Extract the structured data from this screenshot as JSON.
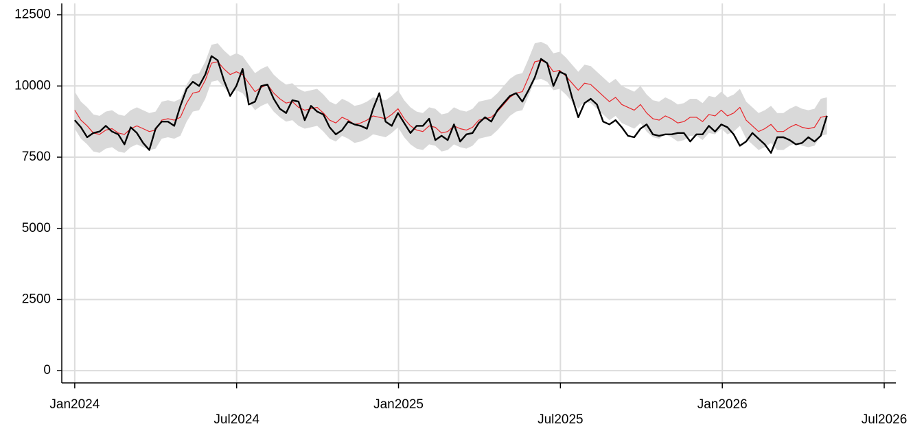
{
  "chart_data": {
    "type": "line",
    "x": [
      2024,
      2024.0192,
      2024.0384,
      2024.0576,
      2024.0768,
      2024.096,
      2024.1152,
      2024.1344,
      2024.1536,
      2024.1728,
      2024.192,
      2024.2112,
      2024.2304,
      2024.2496,
      2024.2688,
      2024.288,
      2024.3072,
      2024.3264,
      2024.3456,
      2024.3648,
      2024.384,
      2024.4032,
      2024.4224,
      2024.4416,
      2024.4608,
      2024.48,
      2024.4992,
      2024.5184,
      2024.5376,
      2024.5568,
      2024.576,
      2024.5952,
      2024.6144,
      2024.6336,
      2024.6528,
      2024.672,
      2024.6912,
      2024.7104,
      2024.7296,
      2024.7488,
      2024.768,
      2024.7872,
      2024.8064,
      2024.8256,
      2024.8448,
      2024.864,
      2024.8832,
      2024.9024,
      2024.9216,
      2024.9408,
      2024.96,
      2024.9792,
      2024.9984,
      2025.0176,
      2025.0368,
      2025.056,
      2025.0752,
      2025.0944,
      2025.1136,
      2025.1328,
      2025.152,
      2025.1712,
      2025.1904,
      2025.2096,
      2025.2288,
      2025.248,
      2025.2672,
      2025.2864,
      2025.3056,
      2025.3248,
      2025.344,
      2025.3632,
      2025.3824,
      2025.4016,
      2025.4208,
      2025.44,
      2025.4592,
      2025.4784,
      2025.4976,
      2025.5168,
      2025.536,
      2025.5552,
      2025.5744,
      2025.5936,
      2025.6128,
      2025.632,
      2025.6512,
      2025.6704,
      2025.6896,
      2025.7088,
      2025.728,
      2025.7472,
      2025.7664,
      2025.7856,
      2025.8048,
      2025.824,
      2025.8432,
      2025.8624,
      2025.8816,
      2025.9008,
      2025.92,
      2025.9392,
      2025.9584,
      2025.9776,
      2025.9968,
      2026.016,
      2026.0352,
      2026.0544,
      2026.0736,
      2026.0928,
      2026.112,
      2026.1312,
      2026.1504,
      2026.1696,
      2026.1888,
      2026.208,
      2026.2272,
      2026.2464,
      2026.2656,
      2026.2848,
      2026.304,
      2026.3232
    ],
    "band": {
      "color": "#d9d9d9",
      "lower": [
        8500,
        8150,
        7950,
        7700,
        7650,
        7800,
        7850,
        7700,
        7650,
        7850,
        7950,
        7850,
        7750,
        7800,
        8150,
        8200,
        8150,
        8250,
        8750,
        9100,
        9150,
        9550,
        10150,
        10200,
        9950,
        9750,
        9850,
        9750,
        9450,
        9150,
        9300,
        9400,
        9100,
        8900,
        8750,
        8800,
        8600,
        8500,
        8550,
        8600,
        8400,
        8150,
        8050,
        8250,
        8150,
        8000,
        8050,
        8150,
        8300,
        8250,
        8200,
        8350,
        8550,
        8200,
        7950,
        7800,
        7750,
        7950,
        7900,
        7700,
        7750,
        7950,
        7850,
        7800,
        7900,
        8150,
        8200,
        8250,
        8450,
        8700,
        8950,
        9100,
        9150,
        9650,
        10200,
        10250,
        10150,
        9850,
        9900,
        9700,
        9450,
        9200,
        9450,
        9400,
        9200,
        9000,
        8800,
        8950,
        8700,
        8600,
        8500,
        8700,
        8400,
        8200,
        8150,
        8300,
        8200,
        8050,
        8100,
        8250,
        8250,
        8100,
        8350,
        8300,
        8500,
        8300,
        8400,
        8600,
        8150,
        7950,
        7750,
        7850,
        8000,
        7750,
        7750,
        7900,
        8000,
        7900,
        7850,
        7900,
        8250,
        8300
      ],
      "upper": [
        9800,
        9450,
        9250,
        9000,
        8950,
        9100,
        9150,
        9000,
        8950,
        9150,
        9250,
        9150,
        9050,
        9100,
        9450,
        9500,
        9450,
        9550,
        10050,
        10400,
        10450,
        10850,
        11450,
        11500,
        11250,
        11050,
        11150,
        11050,
        10750,
        10450,
        10600,
        10700,
        10400,
        10200,
        10050,
        10100,
        9900,
        9800,
        9850,
        9900,
        9700,
        9450,
        9350,
        9550,
        9450,
        9300,
        9350,
        9450,
        9600,
        9550,
        9500,
        9650,
        9850,
        9500,
        9250,
        9100,
        9050,
        9250,
        9200,
        9000,
        9050,
        9250,
        9150,
        9100,
        9200,
        9450,
        9500,
        9550,
        9750,
        10000,
        10250,
        10400,
        10450,
        10950,
        11500,
        11550,
        11450,
        11150,
        11200,
        11000,
        10750,
        10500,
        10750,
        10700,
        10500,
        10300,
        10100,
        10250,
        10000,
        9900,
        9800,
        10000,
        9700,
        9500,
        9450,
        9600,
        9500,
        9350,
        9400,
        9550,
        9550,
        9400,
        9650,
        9600,
        9800,
        9600,
        9700,
        9900,
        9450,
        9250,
        9050,
        9150,
        9300,
        9050,
        9050,
        9200,
        9300,
        9200,
        9150,
        9200,
        9550,
        9600
      ]
    },
    "series": [
      {
        "color": "#e8262b",
        "values": [
          9150,
          8800,
          8600,
          8350,
          8300,
          8450,
          8500,
          8350,
          8300,
          8500,
          8600,
          8500,
          8400,
          8450,
          8800,
          8850,
          8800,
          8900,
          9400,
          9750,
          9800,
          10200,
          10800,
          10850,
          10600,
          10400,
          10500,
          10400,
          10100,
          9800,
          9950,
          10050,
          9750,
          9550,
          9400,
          9450,
          9250,
          9150,
          9200,
          9250,
          9050,
          8800,
          8700,
          8900,
          8800,
          8650,
          8700,
          8800,
          8950,
          8900,
          8850,
          9000,
          9200,
          8850,
          8600,
          8450,
          8400,
          8600,
          8550,
          8350,
          8400,
          8600,
          8500,
          8450,
          8550,
          8800,
          8850,
          8900,
          9100,
          9350,
          9600,
          9750,
          9800,
          10300,
          10850,
          10900,
          10800,
          10500,
          10550,
          10350,
          10100,
          9850,
          10100,
          10050,
          9850,
          9650,
          9450,
          9600,
          9350,
          9250,
          9150,
          9350,
          9050,
          8850,
          8800,
          8950,
          8850,
          8700,
          8750,
          8900,
          8900,
          8750,
          9000,
          8950,
          9150,
          8950,
          9050,
          9250,
          8800,
          8600,
          8400,
          8500,
          8650,
          8400,
          8400,
          8550,
          8650,
          8550,
          8500,
          8550,
          8900,
          8950
        ]
      },
      {
        "color": "#000000",
        "values": [
          8800,
          8550,
          8200,
          8350,
          8400,
          8600,
          8400,
          8300,
          7950,
          8550,
          8350,
          8000,
          7750,
          8500,
          8750,
          8750,
          8600,
          9300,
          9900,
          10150,
          10000,
          10400,
          11050,
          10900,
          10200,
          9650,
          10000,
          10600,
          9350,
          9450,
          10000,
          10050,
          9550,
          9200,
          9050,
          9500,
          9450,
          8800,
          9300,
          9100,
          9000,
          8550,
          8300,
          8450,
          8750,
          8650,
          8600,
          8500,
          9200,
          9750,
          8750,
          8600,
          9050,
          8700,
          8350,
          8600,
          8600,
          8850,
          8100,
          8250,
          8100,
          8650,
          8050,
          8300,
          8350,
          8700,
          8900,
          8750,
          9150,
          9400,
          9650,
          9750,
          9450,
          9850,
          10300,
          10950,
          10800,
          10000,
          10500,
          10400,
          9600,
          8900,
          9400,
          9550,
          9350,
          8750,
          8650,
          8800,
          8550,
          8250,
          8200,
          8500,
          8650,
          8300,
          8250,
          8300,
          8300,
          8350,
          8350,
          8050,
          8300,
          8300,
          8600,
          8400,
          8650,
          8550,
          8300,
          7900,
          8050,
          8350,
          8150,
          7950,
          7650,
          8200,
          8200,
          8100,
          7950,
          8000,
          8200,
          8050,
          8250,
          8950
        ]
      }
    ],
    "xlim": [
      2023.96,
      2026.536
    ],
    "xticks": [
      {
        "value": 2024,
        "label": "Jan2024"
      },
      {
        "value": 2024.5,
        "label": "Jul2024"
      },
      {
        "value": 2025,
        "label": "Jan2025"
      },
      {
        "value": 2025.5,
        "label": "Jul2025"
      },
      {
        "value": 2026,
        "label": "Jan2026"
      },
      {
        "value": 2026.5,
        "label": "Jul2026"
      }
    ],
    "ylim": [
      -430,
      12900
    ],
    "yticks": [
      0,
      2500,
      5000,
      7500,
      10000,
      12500
    ],
    "grid": true
  }
}
